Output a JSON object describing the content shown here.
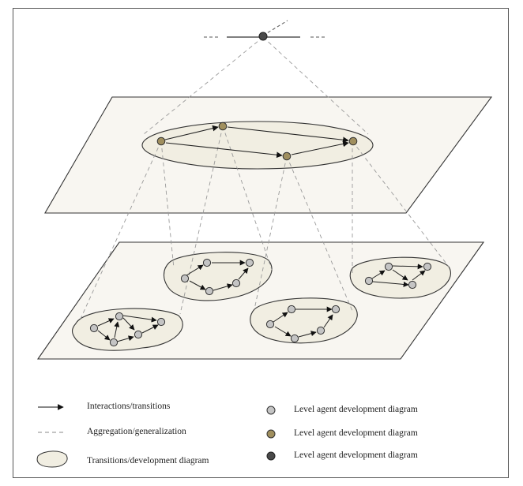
{
  "colors": {
    "plane_fill": "#f8f6f1",
    "blob_fill": "#f1eee2",
    "lower_node": "#c4c4c4",
    "middle_node": "#a08f5e",
    "top_node": "#4a4a4a",
    "stroke": "#333333",
    "dashed": "#9a9a9a"
  },
  "legend": {
    "arrow_label": "Interactions/transitions",
    "dashed_label": "Aggregation/generalization",
    "blob_label": "Transitions/development diagram",
    "lower_node_label": "Level  agent development diagram",
    "middle_node_label": "Level  agent development diagram",
    "top_node_label": "Level  agent development diagram"
  }
}
